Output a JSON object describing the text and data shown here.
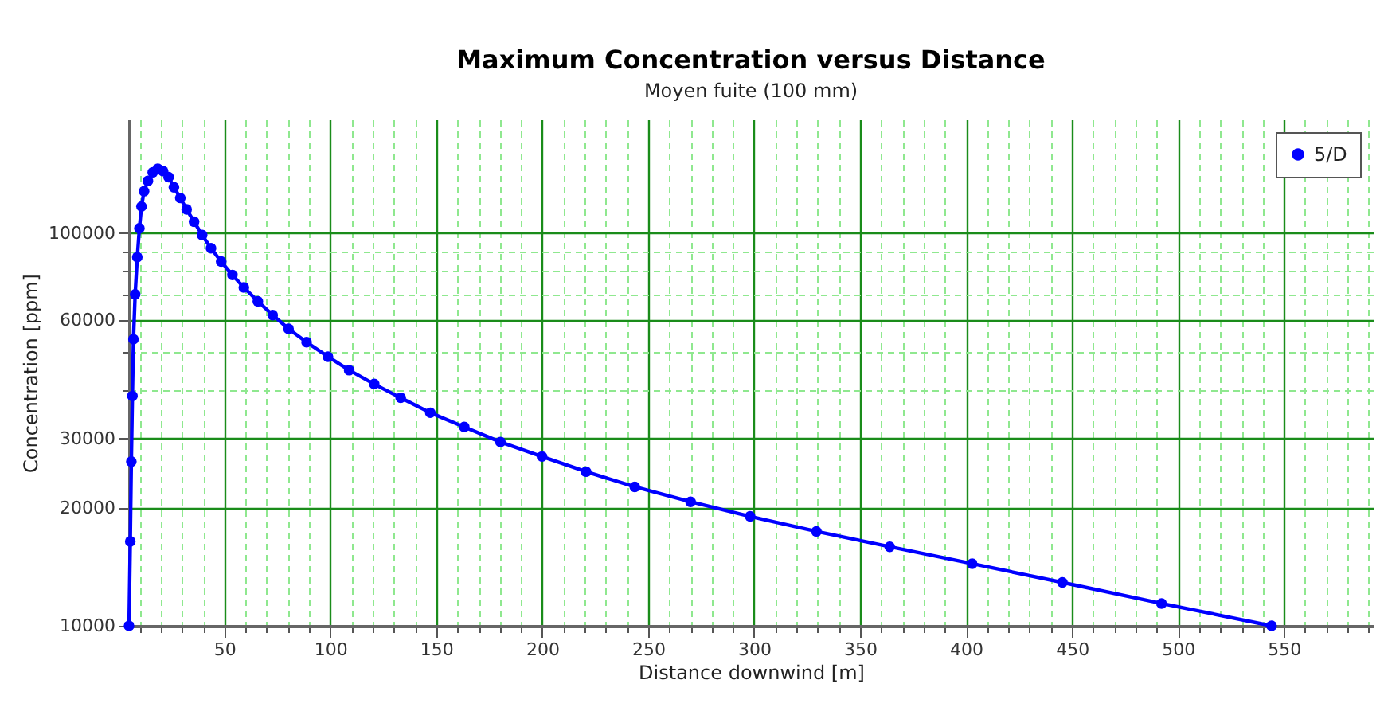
{
  "chart_data": {
    "type": "line",
    "title": "Maximum Concentration versus Distance",
    "subtitle": "Moyen fuite (100 mm)",
    "xlabel": "Distance downwind [m]",
    "ylabel": "Concentration [ppm]",
    "x": [
      5,
      5.6,
      6.1,
      6.6,
      7.1,
      7.9,
      8.9,
      9.9,
      10.9,
      12.1,
      13.9,
      16.2,
      18.6,
      21.1,
      23.7,
      26.2,
      29.2,
      32.2,
      35.7,
      39.5,
      43.7,
      48.5,
      53.8,
      59.2,
      65.8,
      72.8,
      80.3,
      88.8,
      98.9,
      108.9,
      120.7,
      133.2,
      147.2,
      163.2,
      180.3,
      199.9,
      220.7,
      243.7,
      270,
      298.1,
      329.4,
      364,
      402.9,
      445.5,
      492.3,
      544.2
    ],
    "series": [
      {
        "name": "5/D",
        "color": "#0000ff",
        "values": [
          10000,
          16400,
          26200,
          38500,
          53700,
          69900,
          86900,
          103000,
          117000,
          128000,
          136000,
          143000,
          146000,
          144000,
          139000,
          131000,
          123000,
          115000,
          107000,
          99000,
          91600,
          84700,
          78300,
          72800,
          67100,
          61900,
          57100,
          52800,
          48500,
          44800,
          41300,
          38100,
          34900,
          32100,
          29400,
          27000,
          24700,
          22600,
          20700,
          19000,
          17400,
          15900,
          14400,
          12900,
          11400,
          10000
        ]
      }
    ],
    "xlim": [
      5,
      592
    ],
    "xticks": [
      {
        "value": 10,
        "label": null
      },
      {
        "value": 20,
        "label": null
      },
      {
        "value": 30,
        "label": null
      },
      {
        "value": 40,
        "label": null
      },
      50,
      {
        "value": 60,
        "label": null
      },
      {
        "value": 70,
        "label": null
      },
      {
        "value": 80,
        "label": null
      },
      {
        "value": 90,
        "label": null
      },
      100,
      {
        "value": 110,
        "label": null
      },
      {
        "value": 120,
        "label": null
      },
      {
        "value": 130,
        "label": null
      },
      {
        "value": 140,
        "label": null
      },
      150,
      {
        "value": 160,
        "label": null
      },
      {
        "value": 170,
        "label": null
      },
      {
        "value": 180,
        "label": null
      },
      {
        "value": 190,
        "label": null
      },
      200,
      {
        "value": 210,
        "label": null
      },
      {
        "value": 220,
        "label": null
      },
      {
        "value": 230,
        "label": null
      },
      {
        "value": 240,
        "label": null
      },
      250,
      {
        "value": 260,
        "label": null
      },
      {
        "value": 270,
        "label": null
      },
      {
        "value": 280,
        "label": null
      },
      {
        "value": 290,
        "label": null
      },
      300,
      {
        "value": 310,
        "label": null
      },
      {
        "value": 320,
        "label": null
      },
      {
        "value": 330,
        "label": null
      },
      {
        "value": 340,
        "label": null
      },
      350,
      {
        "value": 360,
        "label": null
      },
      {
        "value": 370,
        "label": null
      },
      {
        "value": 380,
        "label": null
      },
      {
        "value": 390,
        "label": null
      },
      400,
      {
        "value": 410,
        "label": null
      },
      {
        "value": 420,
        "label": null
      },
      {
        "value": 430,
        "label": null
      },
      {
        "value": 440,
        "label": null
      },
      450,
      {
        "value": 460,
        "label": null
      },
      {
        "value": 470,
        "label": null
      },
      {
        "value": 480,
        "label": null
      },
      {
        "value": 490,
        "label": null
      },
      500,
      {
        "value": 510,
        "label": null
      },
      {
        "value": 520,
        "label": null
      },
      {
        "value": 530,
        "label": null
      },
      {
        "value": 540,
        "label": null
      },
      550,
      {
        "value": 560,
        "label": null
      },
      {
        "value": 570,
        "label": null
      },
      {
        "value": 580,
        "label": null
      },
      {
        "value": 590,
        "label": null
      }
    ],
    "ylim": [
      10000,
      195000
    ],
    "yticks": [
      10000,
      20000,
      30000,
      {
        "value": 40000,
        "label": null
      },
      {
        "value": 50000,
        "label": null
      },
      60000,
      {
        "value": 70000,
        "label": null
      },
      {
        "value": 80000,
        "label": null
      },
      {
        "value": 90000,
        "label": null
      },
      100000
    ],
    "log": "y",
    "grid": true,
    "legend": "top right",
    "marker": "circle",
    "line_style": "solid"
  }
}
